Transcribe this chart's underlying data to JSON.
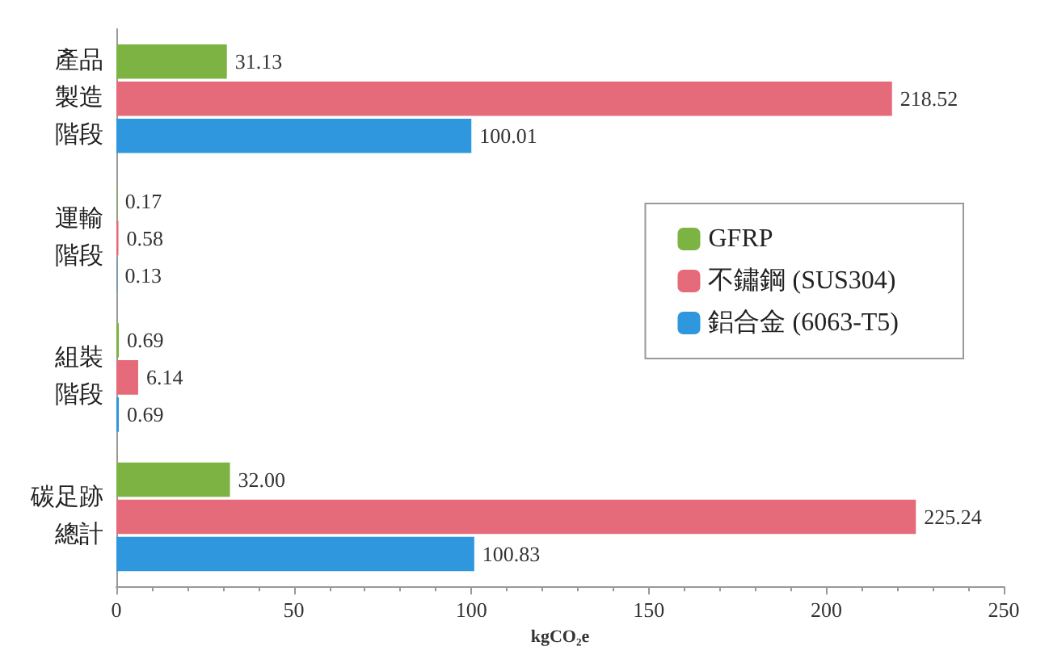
{
  "chart_data": {
    "type": "bar",
    "orientation": "horizontal",
    "xlabel": "kgCO₂e",
    "categories": [
      "產品製造階段",
      "運輸階段",
      "組裝階段",
      "碳足跡總計"
    ],
    "series": [
      {
        "name": "GFRP",
        "color": "#7cb342",
        "values": [
          31.13,
          0.17,
          0.69,
          32.0
        ],
        "value_labels": [
          "31.13",
          "0.17",
          "0.69",
          "32.00"
        ]
      },
      {
        "name": "不鏽鋼 (SUS304)",
        "color": "#e56b7a",
        "values": [
          218.52,
          0.58,
          6.14,
          225.24
        ],
        "value_labels": [
          "218.52",
          "0.58",
          "6.14",
          "225.24"
        ]
      },
      {
        "name": "鋁合金 (6063-T5)",
        "color": "#2f97de",
        "values": [
          100.01,
          0.13,
          0.69,
          100.83
        ],
        "value_labels": [
          "100.01",
          "0.13",
          "0.69",
          "100.83"
        ]
      }
    ],
    "xlim": [
      0,
      250
    ],
    "xticks": [
      0,
      50,
      100,
      150,
      200,
      250
    ],
    "grid": false,
    "legend": "right"
  }
}
